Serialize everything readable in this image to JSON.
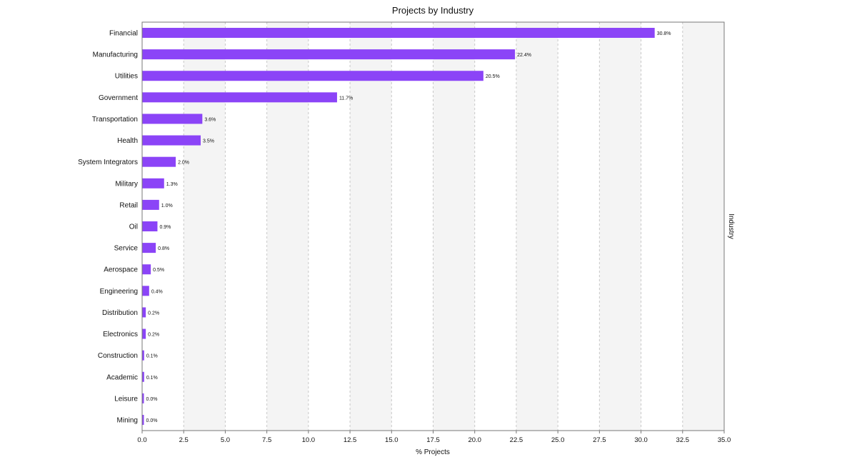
{
  "chart_data": {
    "type": "bar",
    "orientation": "horizontal",
    "title": "Projects by Industry",
    "xlabel": "% Projects",
    "ylabel": "Industry",
    "xlim": [
      0,
      35
    ],
    "xticks": [
      "0.0",
      "2.5",
      "5.0",
      "7.5",
      "10.0",
      "12.5",
      "15.0",
      "17.5",
      "20.0",
      "22.5",
      "25.0",
      "27.5",
      "30.0",
      "32.5",
      "35.0"
    ],
    "grid": "vertical dashed, alternating shaded bands",
    "legend": "none",
    "bar_color": "#8b44f7",
    "categories": [
      "Financial",
      "Manufacturing",
      "Utilities",
      "Government",
      "Transportation",
      "Health",
      "System Integrators",
      "Military",
      "Retail",
      "Oil",
      "Service",
      "Aerospace",
      "Engineering",
      "Distribution",
      "Electronics",
      "Construction",
      "Academic",
      "Leisure",
      "Mining"
    ],
    "values": [
      30.8,
      22.4,
      20.5,
      11.7,
      3.6,
      3.5,
      2.0,
      1.3,
      1.0,
      0.9,
      0.8,
      0.5,
      0.4,
      0.2,
      0.2,
      0.1,
      0.1,
      0.0,
      0.0
    ],
    "data_labels": [
      "30.8%",
      "22.4%",
      "20.5%",
      "11.7%",
      "3.6%",
      "3.5%",
      "2.0%",
      "1.3%",
      "1.0%",
      "0.9%",
      "0.8%",
      "0.5%",
      "0.4%",
      "0.2%",
      "0.2%",
      "0.1%",
      "0.1%",
      "0.0%",
      "0.0%"
    ]
  }
}
